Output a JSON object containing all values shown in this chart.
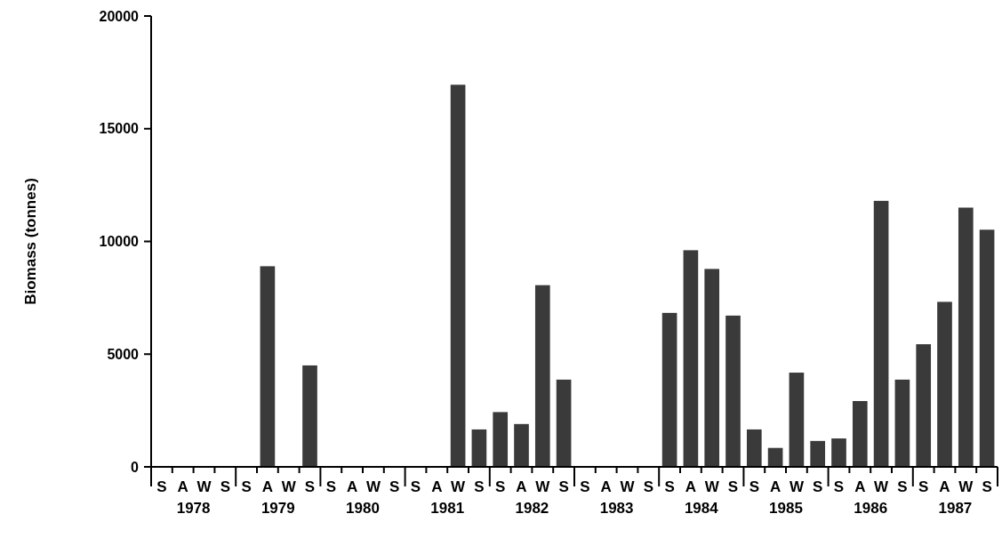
{
  "chart_data": {
    "type": "bar",
    "ylabel": "Biomass (tonnes)",
    "categories": [
      "S",
      "A",
      "W",
      "S",
      "S",
      "A",
      "W",
      "S",
      "S",
      "A",
      "W",
      "S",
      "S",
      "A",
      "W",
      "S",
      "S",
      "A",
      "W",
      "S",
      "S",
      "A",
      "W",
      "S",
      "S",
      "A",
      "W",
      "S",
      "S",
      "A",
      "W",
      "S",
      "S",
      "A",
      "W",
      "S",
      "S",
      "A",
      "W",
      "S"
    ],
    "values": [
      0,
      0,
      0,
      0,
      0,
      8900,
      0,
      4500,
      0,
      0,
      0,
      0,
      0,
      0,
      16950,
      1660,
      2430,
      1900,
      8060,
      3870,
      0,
      0,
      0,
      0,
      6830,
      9610,
      8780,
      6710,
      1660,
      840,
      4180,
      1150,
      1260,
      2920,
      11800,
      3870,
      5440,
      7320,
      11500,
      10520
    ],
    "color": "#3a3a3a",
    "ylim": [
      0,
      20000
    ],
    "yticks": [
      0,
      5000,
      10000,
      15000,
      20000
    ],
    "annotations": [
      "1978",
      "1979",
      "1980",
      "1981",
      "1982",
      "1983",
      "1984",
      "1985",
      "1986",
      "1987"
    ]
  }
}
